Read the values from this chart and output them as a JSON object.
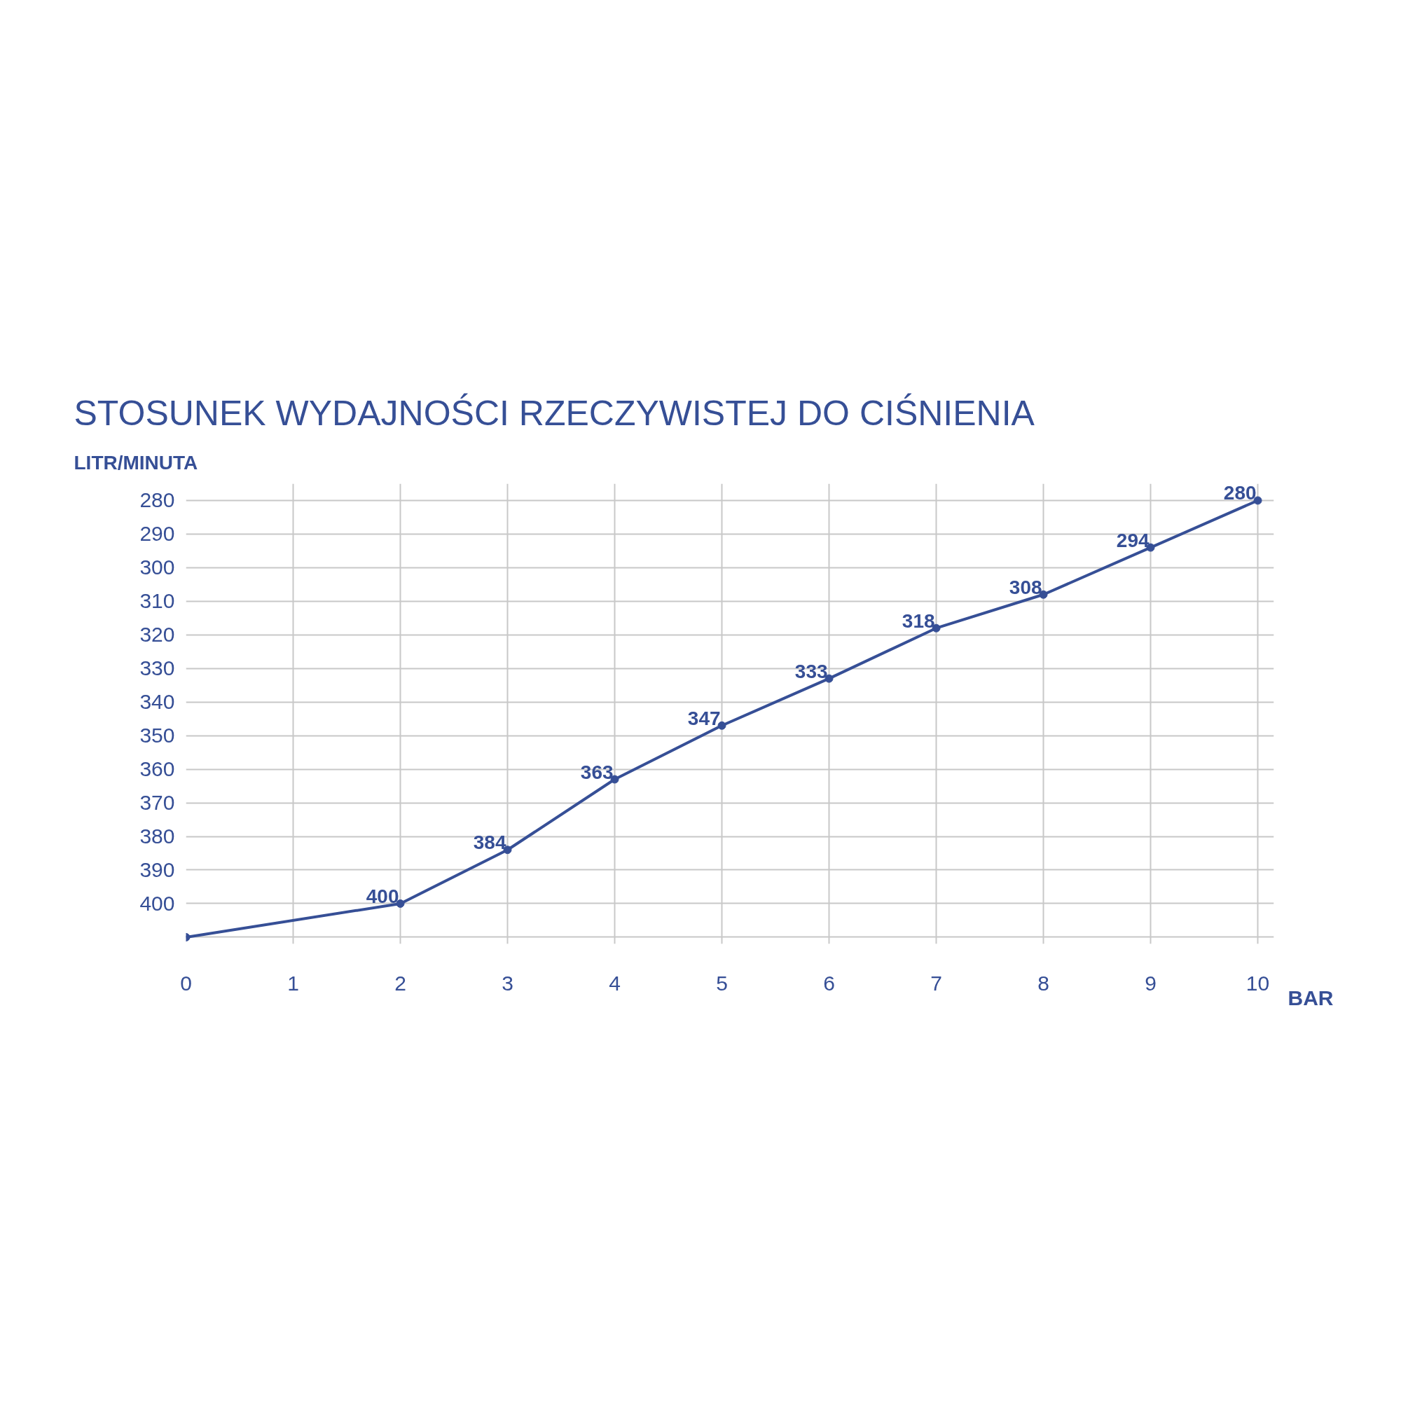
{
  "chart_data": {
    "type": "line",
    "title": "STOSUNEK WYDAJNOŚCI RZECZYWISTEJ DO CIŚNIENIA",
    "ylabel": "LITR/MINUTA",
    "xlabel": "BAR",
    "x": [
      0,
      2,
      3,
      4,
      5,
      6,
      7,
      8,
      9,
      10
    ],
    "series": [
      {
        "color": "#364f96",
        "values": [
          410,
          400,
          384,
          363,
          347,
          333,
          318,
          308,
          294,
          280
        ],
        "value_labels": [
          null,
          "400",
          "384",
          "363",
          "347",
          "333",
          "318",
          "308",
          "294",
          "280"
        ]
      }
    ],
    "xlim": [
      0,
      10.15
    ],
    "xticks": [
      0,
      1,
      2,
      3,
      4,
      5,
      6,
      7,
      8,
      9,
      10
    ],
    "ylim": [
      412,
      275
    ],
    "yticks": [
      280,
      290,
      300,
      310,
      320,
      330,
      340,
      350,
      360,
      370,
      380,
      390,
      400,
      {
        "value": 410,
        "label": null
      }
    ],
    "grid": true,
    "marker": "circle",
    "line_style": "solid"
  }
}
